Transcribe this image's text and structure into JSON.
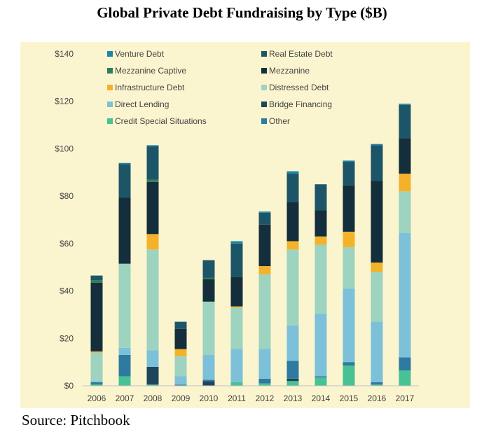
{
  "chart_data": {
    "type": "bar",
    "stacked": true,
    "title": "Global Private Debt Fundraising by Type ($B)",
    "source": "Source: Pitchbook",
    "categories": [
      "2006",
      "2007",
      "2008",
      "2009",
      "2010",
      "2011",
      "2012",
      "2013",
      "2014",
      "2015",
      "2016",
      "2017"
    ],
    "ylim": [
      0,
      140
    ],
    "yticks": [
      0,
      20,
      40,
      60,
      80,
      100,
      120,
      140
    ],
    "ytick_labels": [
      "$0",
      "$20",
      "$40",
      "$60",
      "$80",
      "$100",
      "$120",
      "$140"
    ],
    "grid": false,
    "legend_position": "top",
    "colors": {
      "plot_background": "#fbf5cf",
      "Venture Debt": "#1b86a8",
      "Real Estate Debt": "#1d5568",
      "Mezzanine Captive": "#2f7d5c",
      "Mezzanine": "#142e3c",
      "Infrastructure Debt": "#f3b22a",
      "Distressed Debt": "#9dd3bf",
      "Direct Lending": "#7cc1d9",
      "Bridge Financing": "#1e465b",
      "Credit Special Situations": "#47c294",
      "Other": "#2f7aa1"
    },
    "legend": [
      "Venture Debt",
      "Real Estate Debt",
      "Mezzanine Captive",
      "Mezzanine",
      "Infrastructure Debt",
      "Distressed Debt",
      "Direct Lending",
      "Bridge Financing",
      "Credit Special Situations",
      "Other"
    ],
    "stack_order": [
      "Credit Special Situations",
      "Bridge Financing",
      "Other",
      "Direct Lending",
      "Distressed Debt",
      "Infrastructure Debt",
      "Mezzanine",
      "Mezzanine Captive",
      "Real Estate Debt",
      "Venture Debt"
    ],
    "series": [
      {
        "name": "Credit Special Situations",
        "values": [
          0.5,
          4,
          0.5,
          0,
          0,
          1.5,
          1,
          2,
          3.5,
          8.5,
          0.5,
          6.5
        ]
      },
      {
        "name": "Bridge Financing",
        "values": [
          0,
          0,
          7.5,
          0,
          2,
          0,
          0,
          1,
          0,
          0,
          0,
          0
        ]
      },
      {
        "name": "Other",
        "values": [
          1,
          9,
          0,
          0.5,
          0.5,
          0,
          2,
          7.5,
          0.5,
          1.5,
          1,
          5.5
        ]
      },
      {
        "name": "Direct Lending",
        "values": [
          0.5,
          3,
          7,
          3.5,
          10.5,
          14,
          12.5,
          15,
          26.5,
          31,
          25.5,
          52.5
        ]
      },
      {
        "name": "Distressed Debt",
        "values": [
          12,
          35.5,
          42.5,
          8.5,
          22.5,
          17.5,
          31.5,
          32,
          29,
          17.5,
          21,
          17.5
        ]
      },
      {
        "name": "Infrastructure Debt",
        "values": [
          0.5,
          0,
          6.5,
          3,
          0,
          0.5,
          3.5,
          3.5,
          3.5,
          6.5,
          4,
          7.5
        ]
      },
      {
        "name": "Mezzanine",
        "values": [
          29,
          28,
          22,
          8.5,
          9.5,
          12.5,
          17.5,
          16.5,
          11,
          19.5,
          34.5,
          15
        ]
      },
      {
        "name": "Mezzanine Captive",
        "values": [
          1,
          0,
          1,
          0,
          0.5,
          0,
          0,
          0,
          0,
          0,
          0,
          0
        ]
      },
      {
        "name": "Real Estate Debt",
        "values": [
          2,
          14,
          14,
          3,
          7.5,
          14,
          5,
          12,
          11,
          10,
          15,
          14
        ]
      },
      {
        "name": "Venture Debt",
        "values": [
          0,
          0.5,
          0.5,
          0,
          0,
          1,
          0.5,
          1,
          0,
          0.5,
          0.5,
          0.5
        ]
      }
    ]
  }
}
